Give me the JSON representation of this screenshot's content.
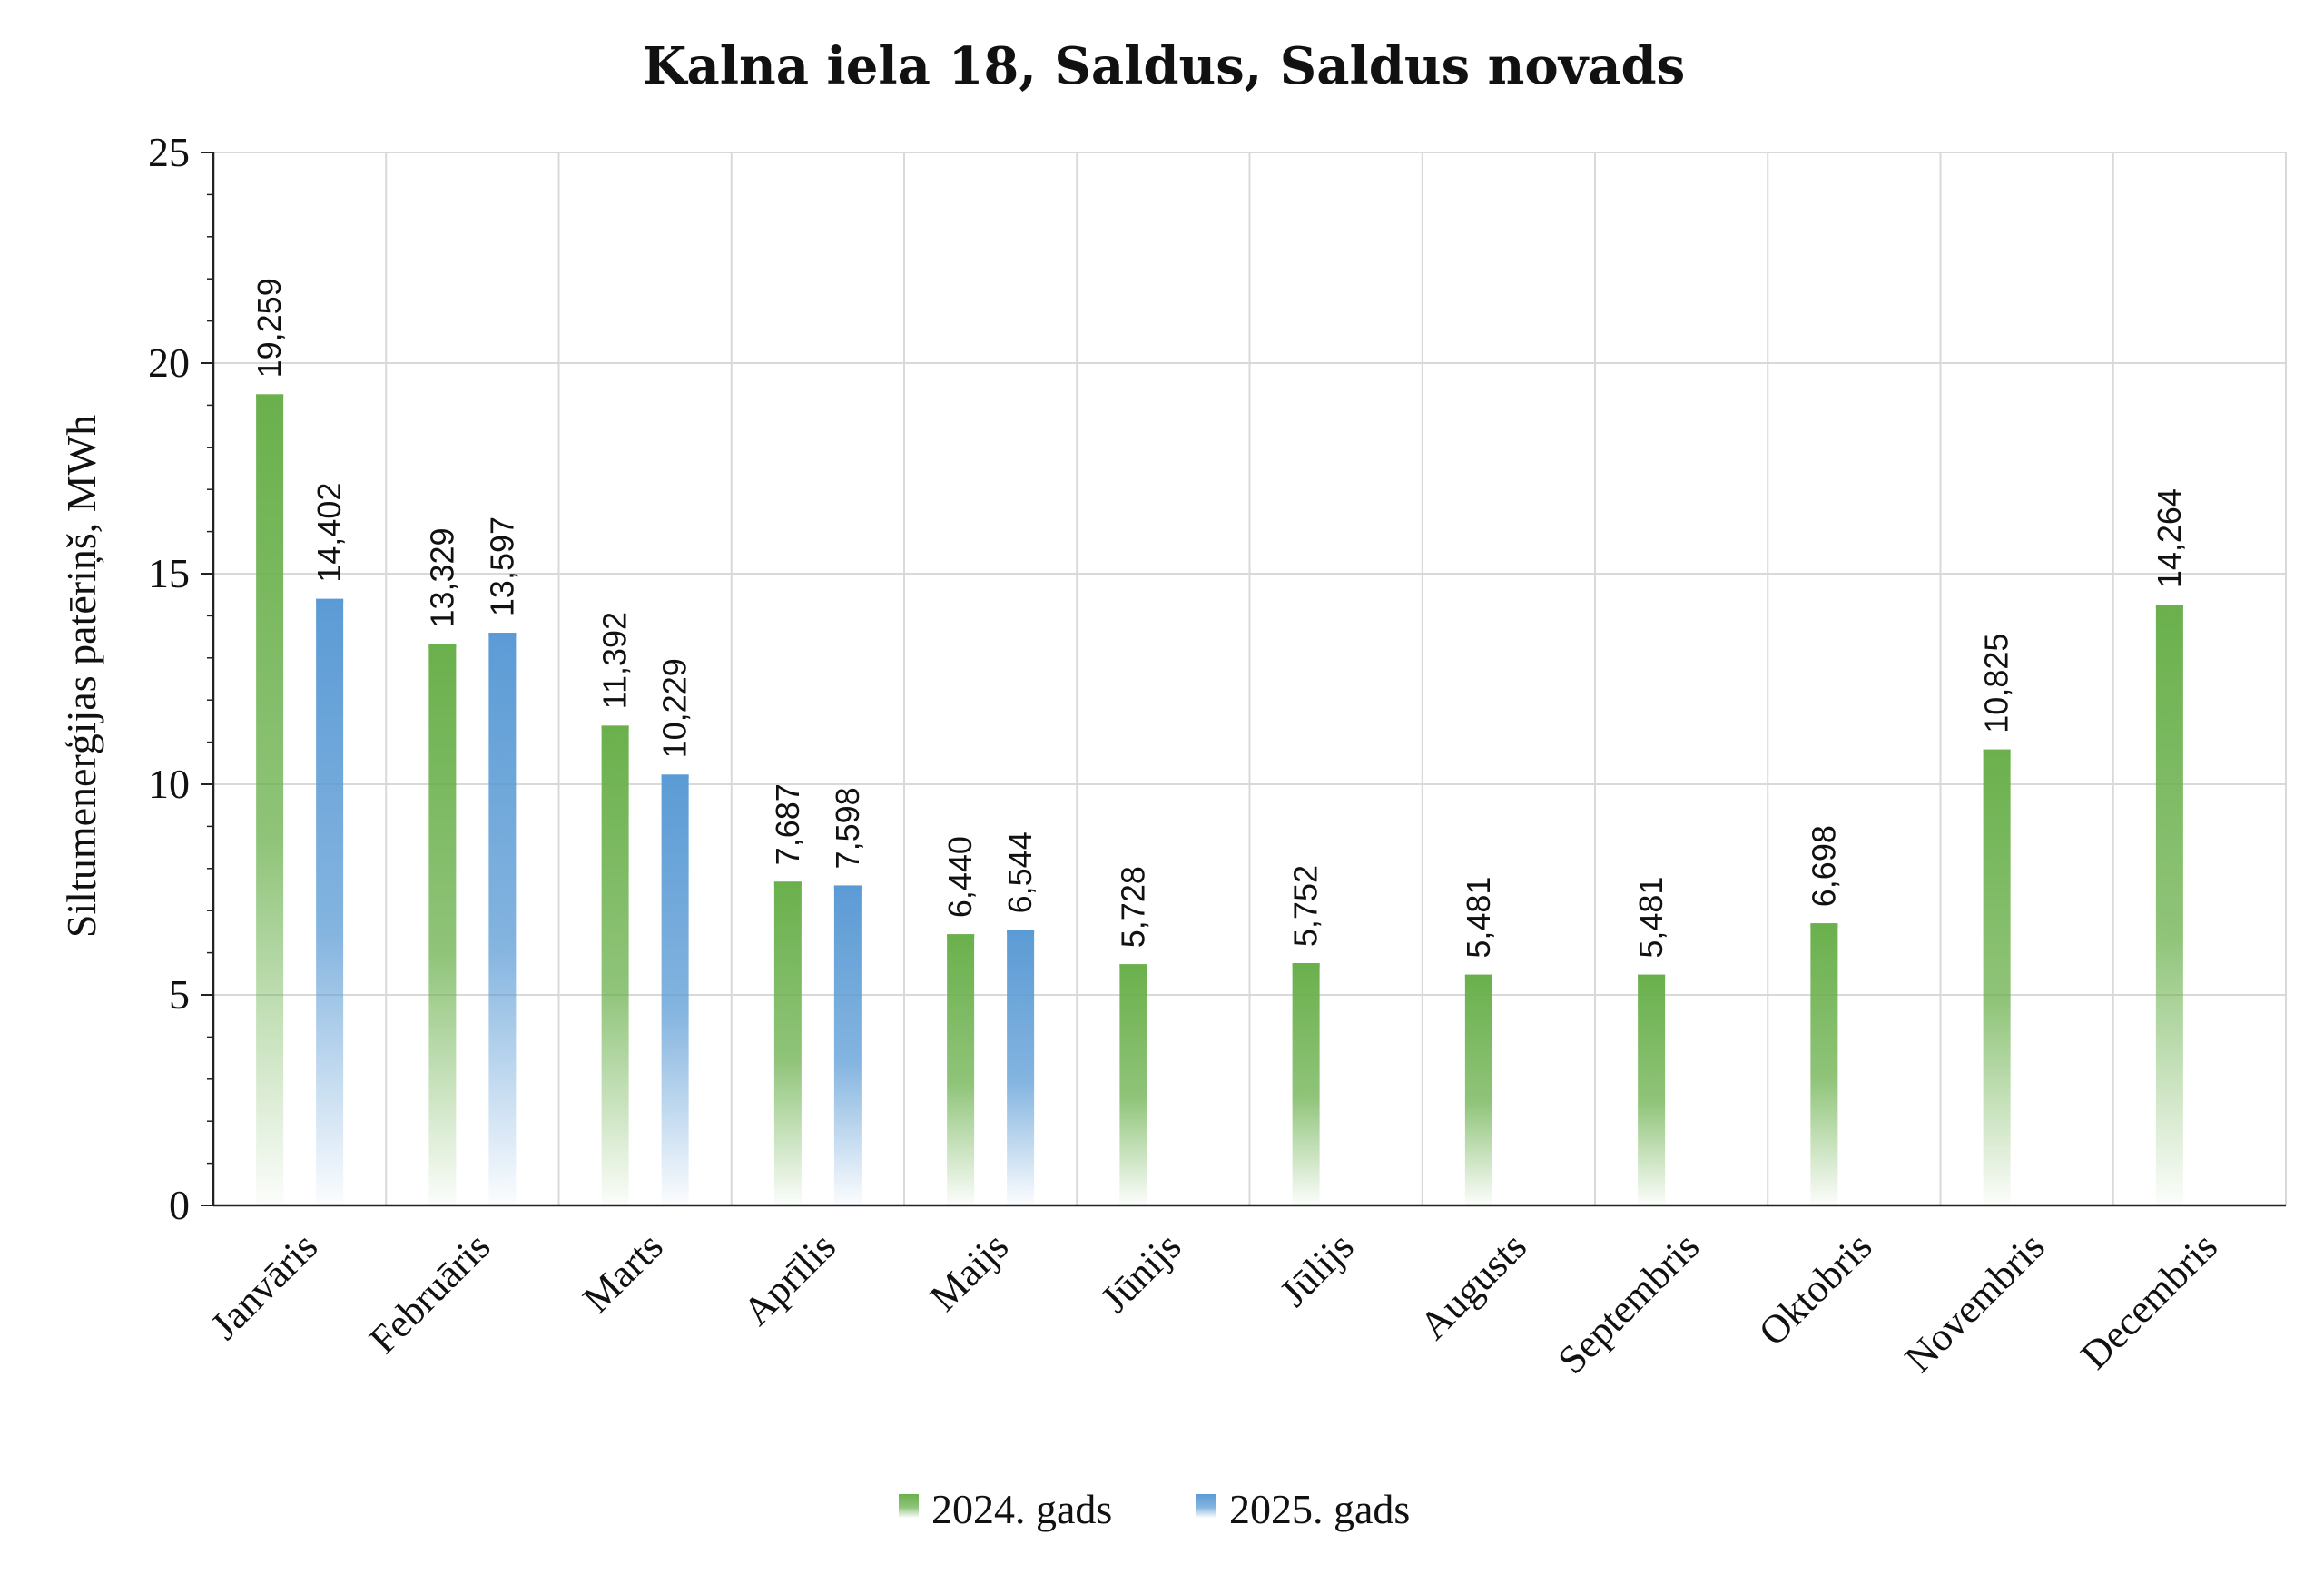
{
  "chart_data": {
    "type": "bar",
    "title": "Kalna iela 18, Saldus, Saldus novads",
    "xlabel": "",
    "ylabel": "Siltumenerģijas patēriņš, MWh",
    "ylim": [
      0,
      25
    ],
    "yticks": [
      0,
      5,
      10,
      15,
      20,
      25
    ],
    "grid": true,
    "legend_position": "bottom",
    "categories": [
      "Janvāris",
      "Februāris",
      "Marts",
      "Aprīlis",
      "Maijs",
      "Jūnijs",
      "Jūlijs",
      "Augusts",
      "Septembris",
      "Oktobris",
      "Novembris",
      "Decembris"
    ],
    "series": [
      {
        "name": "2024. gads",
        "color": "#6ab04c",
        "values": [
          19.259,
          13.329,
          11.392,
          7.687,
          6.44,
          5.728,
          5.752,
          5.481,
          5.481,
          6.698,
          10.825,
          14.264
        ],
        "labels": [
          "19,259",
          "13,329",
          "11,392",
          "7,687",
          "6,440",
          "5,728",
          "5,752",
          "5,481",
          "5,481",
          "6,698",
          "10,825",
          "14,264"
        ]
      },
      {
        "name": "2025. gads",
        "color": "#5b9bd5",
        "values": [
          14.402,
          13.597,
          10.229,
          7.598,
          6.544,
          null,
          null,
          null,
          null,
          null,
          null,
          null
        ],
        "labels": [
          "14,402",
          "13,597",
          "10,229",
          "7,598",
          "6,544",
          "",
          "",
          "",
          "",
          "",
          "",
          ""
        ]
      }
    ]
  }
}
